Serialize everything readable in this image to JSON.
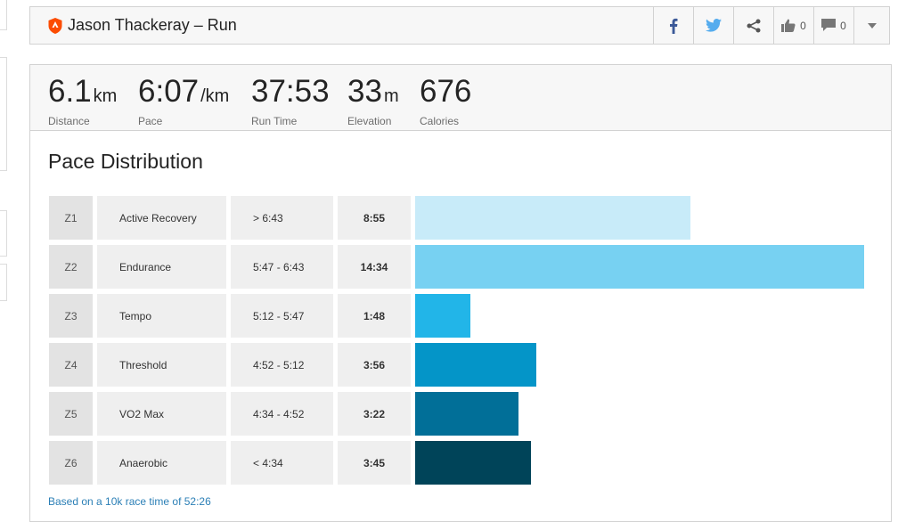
{
  "header": {
    "title": "Jason Thackeray – Run",
    "kudos_count": "0",
    "comment_count": "0"
  },
  "stats": [
    {
      "value": "6.1",
      "unit": "km",
      "label": "Distance"
    },
    {
      "value": "6:07",
      "unit": "/km",
      "label": "Pace"
    },
    {
      "value": "37:53",
      "unit": "",
      "label": "Run Time"
    },
    {
      "value": "33",
      "unit": "m",
      "label": "Elevation"
    },
    {
      "value": "676",
      "unit": "",
      "label": "Calories"
    }
  ],
  "section": {
    "title": "Pace Distribution",
    "footnote": "Based on a 10k race time of 52:26"
  },
  "zones": [
    {
      "zone": "Z1",
      "name": "Active Recovery",
      "range": "> 6:43",
      "time": "8:55",
      "seconds": 535,
      "color": "#c8ebf9"
    },
    {
      "zone": "Z2",
      "name": "Endurance",
      "range": "5:47 - 6:43",
      "time": "14:34",
      "seconds": 874,
      "color": "#77d1f2"
    },
    {
      "zone": "Z3",
      "name": "Tempo",
      "range": "5:12 - 5:47",
      "time": "1:48",
      "seconds": 108,
      "color": "#22b5e8"
    },
    {
      "zone": "Z4",
      "name": "Threshold",
      "range": "4:52 - 5:12",
      "time": "3:56",
      "seconds": 236,
      "color": "#0495c8"
    },
    {
      "zone": "Z5",
      "name": "VO2 Max",
      "range": "4:34 - 4:52",
      "time": "3:22",
      "seconds": 202,
      "color": "#016f98"
    },
    {
      "zone": "Z6",
      "name": "Anaerobic",
      "range": "< 4:34",
      "time": "3:45",
      "seconds": 225,
      "color": "#004459"
    }
  ],
  "colors": {
    "brand": "#fc4c02",
    "facebook": "#3b5998",
    "twitter": "#55acee",
    "link": "#2b7fb6"
  },
  "icons": [
    "run-shield-icon",
    "facebook-icon",
    "twitter-icon",
    "share-icon",
    "thumbs-up-icon",
    "comment-icon",
    "chevron-down-icon"
  ]
}
